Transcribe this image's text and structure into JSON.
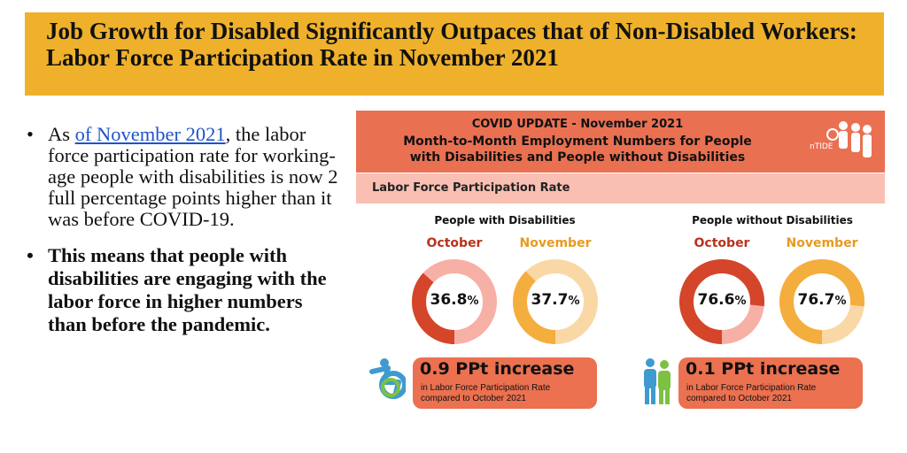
{
  "banner": {
    "title": "Job Growth for Disabled Significantly Outpaces that of Non-Disabled Workers: Labor Force Participation Rate in November 2021"
  },
  "bullets": {
    "b1_pre": "As ",
    "b1_link": "of November 2021",
    "b1_post": ", the labor force participation rate for working-age people with disabilities is now 2 full percentage points higher than it was before COVID-19.",
    "b2": "This means that people with disabilities are engaging with the labor force in higher numbers than before the pandemic."
  },
  "infographic": {
    "covid_update": "COVID UPDATE - November 2021",
    "subtitle_line1": "Month-to-Month Employment Numbers for People",
    "subtitle_line2": "with Disabilities and People without Disabilities",
    "section_label": "Labor Force Participation Rate",
    "logo_text": "nTIDE",
    "groups": [
      {
        "title": "People with Disabilities",
        "oct_label": "October",
        "nov_label": "November",
        "oct_value": "36.8",
        "nov_value": "37.7",
        "stat_big": "0.9 PPt increase",
        "stat_line1": "in Labor Force Participation Rate",
        "stat_line2": "compared to October 2021"
      },
      {
        "title": "People without Disabilities",
        "oct_label": "October",
        "nov_label": "November",
        "oct_value": "76.6",
        "nov_value": "76.7",
        "stat_big": "0.1 PPt increase",
        "stat_line1": "in Labor Force Participation Rate",
        "stat_line2": "compared to October 2021"
      }
    ],
    "percent_sign": "%"
  },
  "colors": {
    "banner": "#EFB12B",
    "header": "#EA7052",
    "label_bar": "#F9BFB2",
    "oct_fill": "#D4452A",
    "oct_track": "#F7B0A6",
    "nov_fill": "#F4AE3D",
    "nov_track": "#FAD8A6"
  },
  "chart_data": [
    {
      "type": "pie",
      "title": "People with Disabilities",
      "unit": "%",
      "categories": [
        "October",
        "November"
      ],
      "values": [
        36.8,
        37.7
      ],
      "annotation": "0.9 PPt increase"
    },
    {
      "type": "pie",
      "title": "People without Disabilities",
      "unit": "%",
      "categories": [
        "October",
        "November"
      ],
      "values": [
        76.6,
        76.7
      ],
      "annotation": "0.1 PPt increase"
    }
  ]
}
